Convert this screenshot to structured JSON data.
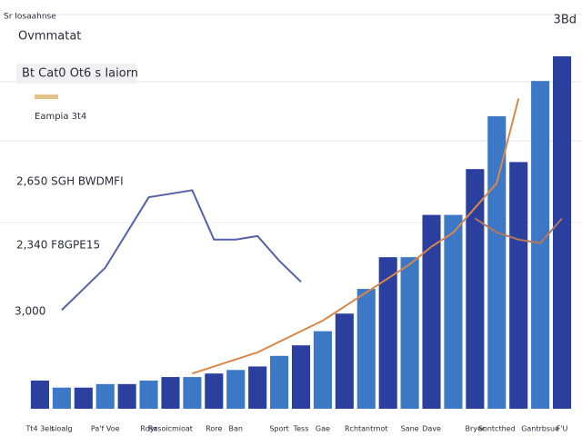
{
  "chart_data": {
    "type": "bar",
    "kicker": "Sr Iosaahnse",
    "title": "Ovmmatat",
    "subtitle": "Bt Cat0 Ot6 s Iaiorn",
    "note": "Eampia 3t4",
    "corner_label": "3Bd",
    "annotations": [
      "2,650 SGH BWDMFI",
      "2,340 F8GPE15",
      "3,000"
    ],
    "categories": [
      "Tt4 3elt",
      "sioalg",
      null,
      "Pa'f Voe",
      null,
      "Rdyr",
      "Rasoicmioat",
      null,
      "Rore",
      "Ban",
      null,
      "Sport",
      "Tess",
      "Gae",
      null,
      "Rchtantrnot",
      null,
      "Sane",
      "Dave",
      null,
      "Bryer",
      "Sontcthed",
      null,
      "Gantrbsue",
      "F'U"
    ],
    "series": [
      {
        "type": "bar",
        "colors": [
          "#2b3f9f",
          "#3c78c6"
        ],
        "values": [
          8,
          6,
          6,
          7,
          7,
          8,
          9,
          9,
          10,
          11,
          12,
          15,
          18,
          22,
          27,
          34,
          43,
          43,
          55,
          55,
          68,
          83,
          70,
          93,
          100
        ]
      },
      {
        "type": "line",
        "color": "#5560a8",
        "values": [
          null,
          28,
          34,
          40,
          50,
          60,
          61,
          62,
          48,
          48,
          49,
          42,
          36,
          null,
          null,
          null,
          null,
          null,
          null,
          null,
          null,
          null,
          null,
          null,
          null
        ]
      },
      {
        "type": "line",
        "color": "#d9874a",
        "values": [
          null,
          null,
          null,
          null,
          null,
          null,
          null,
          10,
          12,
          14,
          16,
          19,
          22,
          25,
          29,
          33,
          37,
          41,
          46,
          50,
          57,
          64,
          88,
          null,
          null
        ]
      },
      {
        "type": "line",
        "color": "#b5775a",
        "values": [
          null,
          null,
          null,
          null,
          null,
          null,
          null,
          null,
          null,
          null,
          null,
          null,
          null,
          null,
          null,
          null,
          null,
          null,
          null,
          null,
          54,
          50,
          48,
          47,
          54
        ]
      }
    ],
    "ylim": [
      0,
      100
    ]
  }
}
